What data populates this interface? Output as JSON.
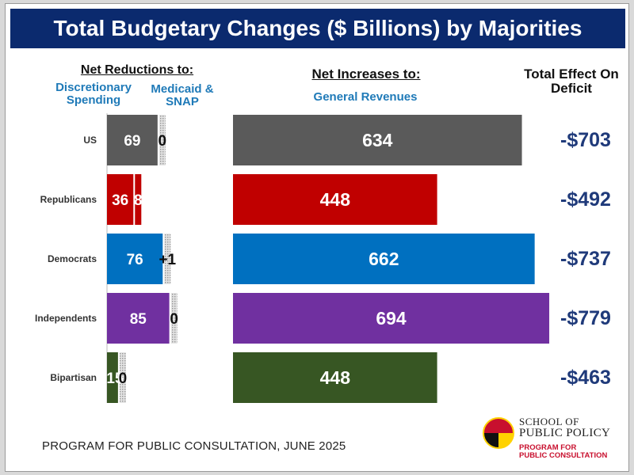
{
  "title": "Total Budgetary Changes ($ Billions) by Majorities",
  "headers": {
    "net_reductions": "Net Reductions to:",
    "discretionary": "Discretionary Spending",
    "medicaid": "Medicaid & SNAP",
    "net_increases": "Net Increases to:",
    "general_revenues": "General Revenues",
    "total_effect": "Total Effect On Deficit"
  },
  "footer": "PROGRAM FOR PUBLIC CONSULTATION, JUNE 2025",
  "logo": {
    "top": "SCHOOL OF",
    "main": "PUBLIC POLICY",
    "sub1": "PROGRAM FOR",
    "sub2": "PUBLIC CONSULTATION"
  },
  "chart_data": {
    "type": "bar",
    "title": "Total Budgetary Changes ($ Billions) by Majorities",
    "categories": [
      "US",
      "Republicans",
      "Democrats",
      "Independents",
      "Bipartisan"
    ],
    "series": [
      {
        "name": "Discretionary Spending",
        "values": [
          69,
          36,
          76,
          85,
          15
        ],
        "labels": [
          "69",
          "36",
          "76",
          "85",
          "15"
        ]
      },
      {
        "name": "Medicaid & SNAP",
        "values": [
          0,
          8,
          1,
          0,
          0
        ],
        "labels": [
          "0",
          "8",
          "+1",
          "0",
          "0"
        ]
      },
      {
        "name": "General Revenues",
        "values": [
          634,
          448,
          662,
          694,
          448
        ],
        "labels": [
          "634",
          "448",
          "662",
          "694",
          "448"
        ]
      }
    ],
    "total_effect": [
      "-$703",
      "-$492",
      "-$737",
      "-$779",
      "-$463"
    ],
    "colors": [
      "#5a5a5a",
      "#c00000",
      "#0070c0",
      "#7030a0",
      "#375623"
    ]
  }
}
